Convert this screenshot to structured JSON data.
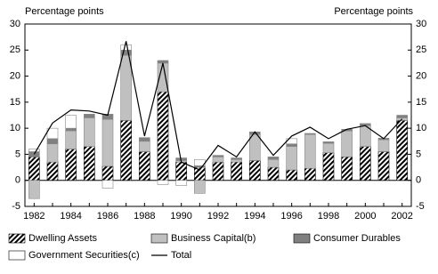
{
  "chart_data": {
    "type": "bar",
    "stacked": true,
    "y_label": "Percentage points",
    "y2_label": "Percentage points",
    "categories": [
      "1982",
      null,
      "1984",
      null,
      "1986",
      null,
      "1988",
      null,
      "1990",
      null,
      "1992",
      null,
      "1994",
      null,
      "1996",
      null,
      "1998",
      null,
      "2000",
      null,
      "2002"
    ],
    "series": [
      {
        "name": "Dwelling Assets",
        "color": "#000000",
        "pattern": "hatch",
        "values": [
          4.5,
          3.5,
          6,
          6.5,
          2.7,
          11.5,
          5.5,
          17,
          3.5,
          2.5,
          3.5,
          3.5,
          3.8,
          2.5,
          2,
          2.3,
          5.3,
          4.5,
          6.5,
          5.5,
          11.5
        ]
      },
      {
        "name": "Business Capital(b)",
        "color": "#c0c0c0",
        "values": [
          -3.5,
          3.5,
          3.5,
          5.5,
          9,
          12.5,
          2,
          5.5,
          0.3,
          -2.5,
          1,
          0.5,
          5,
          1.5,
          4.5,
          6.5,
          1.8,
          5,
          4,
          2.3,
          0.5
        ]
      },
      {
        "name": "Consumer Durables",
        "color": "#808080",
        "values": [
          1,
          1,
          0.5,
          0.7,
          1,
          1,
          0.7,
          0.5,
          0.5,
          0.3,
          0.3,
          0.3,
          0.5,
          0.5,
          0.5,
          0.2,
          0.3,
          0.3,
          0.4,
          0.3,
          0.5
        ]
      },
      {
        "name": "Government Securities(c)",
        "color": "#ffffff",
        "values": [
          0.5,
          2,
          2.5,
          0,
          -1.5,
          1,
          0,
          -0.8,
          -1,
          1.2,
          0,
          0,
          0,
          0,
          1,
          0,
          0,
          0,
          0,
          0,
          0
        ]
      },
      {
        "name": "Total",
        "color": "#000000",
        "type": "line",
        "values": [
          5,
          11,
          13.5,
          13.3,
          12.5,
          26.7,
          8.5,
          22.5,
          3.5,
          2,
          6.7,
          4.5,
          9.3,
          4.8,
          8.5,
          10.2,
          8,
          9.8,
          10.5,
          8,
          11.8
        ]
      }
    ],
    "ylim": [
      -5,
      30
    ],
    "yticks": [
      -5,
      0,
      5,
      10,
      15,
      20,
      25,
      30
    ],
    "y2lim": [
      -5,
      30
    ],
    "y2ticks": [
      -5,
      0,
      5,
      10,
      15,
      20,
      25,
      30
    ],
    "grid": false,
    "legend": "bottom"
  }
}
